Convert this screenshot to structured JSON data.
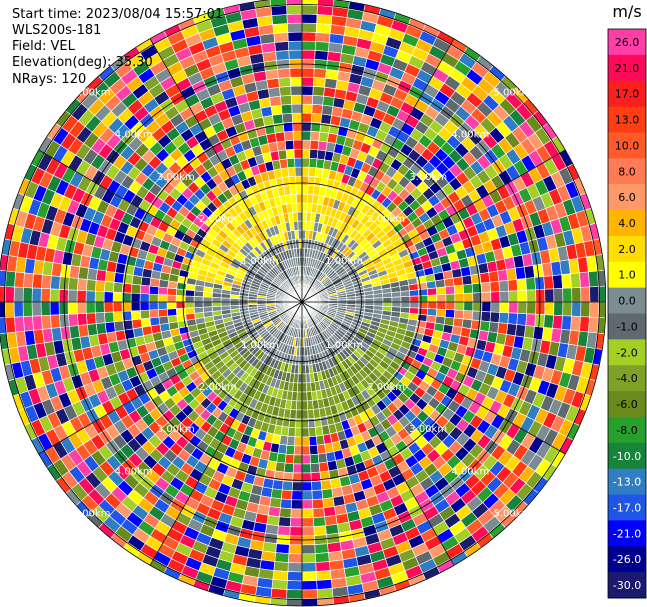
{
  "info": {
    "start_time": "Start time: 2023/08/04 15:57:01",
    "instrument": "WLS200s-181",
    "field": "Field: VEL",
    "elevation": "Elevation(deg): 35.30",
    "nrays": "NRays: 120"
  },
  "colorbar": {
    "unit": "m/s",
    "ticks": [
      "26.0",
      "21.0",
      "17.0",
      "13.0",
      "10.0",
      "8.0",
      "6.0",
      "4.0",
      "2.0",
      "1.0",
      "0.0",
      "-1.0",
      "-2.0",
      "-4.0",
      "-6.0",
      "-8.0",
      "-10.0",
      "-13.0",
      "-17.0",
      "-21.0",
      "-26.0",
      "-30.0"
    ],
    "colors": [
      "#ff3fa5",
      "#ff0a5a",
      "#ff1e1e",
      "#ff3d14",
      "#ff5a28",
      "#ff7a55",
      "#ff9a68",
      "#ffb400",
      "#ffdd00",
      "#ffff00",
      "#7b8c93",
      "#5e6a6e",
      "#a3cf27",
      "#7fa128",
      "#6b8a1d",
      "#27a02d",
      "#17833b",
      "#2f7ec4",
      "#1f55e8",
      "#0000ff",
      "#00008f",
      "#1a1a6e"
    ]
  },
  "chart_data": {
    "type": "heatmap",
    "projection": "polar PPI",
    "field": "VEL",
    "unit": "m/s",
    "range_ring_labels": [
      "1.00km",
      "2.00km",
      "3.00km",
      "4.00km",
      "5.00km"
    ],
    "nrays": 120,
    "value_range": [
      -30.0,
      26.0
    ],
    "description_of_field": [
      {
        "region": "within ~1.0 km",
        "dominant_values_mps": [
          0.0,
          -1.0
        ]
      },
      {
        "region": "1.0-2.0 km, north sector",
        "dominant_values_mps": [
          2.0,
          1.0,
          4.0
        ]
      },
      {
        "region": "1.0-2.0 km, south sector",
        "dominant_values_mps": [
          -2.0,
          -4.0,
          -1.0
        ]
      },
      {
        "region": "beyond ~2.2 km",
        "dominant_values_mps": "noise spanning full scale -30.0 to 26.0"
      }
    ]
  }
}
